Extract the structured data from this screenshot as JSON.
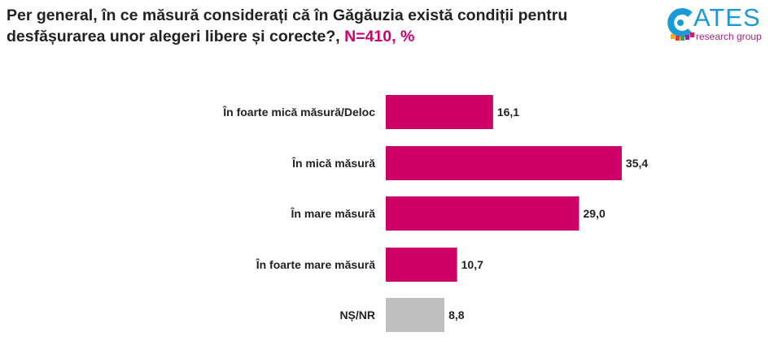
{
  "header": {
    "title": "Per general, în ce măsură considerați că în Găgăuzia există condiții pentru desfășurarea unor alegeri libere și corecte?,",
    "n_label": "N=410, %"
  },
  "logo": {
    "name": "ATES",
    "subtitle": "research group"
  },
  "chart_data": {
    "type": "bar",
    "orientation": "horizontal",
    "title": "Per general, în ce măsură considerați că în Găgăuzia există condiții pentru desfășurarea unor alegeri libere și corecte?, N=410, %",
    "categories": [
      "În foarte mică măsură/Deloc",
      "În mică măsură",
      "În mare măsură",
      "În foarte mare măsură",
      "NȘ/NR"
    ],
    "values": [
      16.1,
      35.4,
      29.0,
      10.7,
      8.8
    ],
    "labels": [
      "16,1",
      "35,4",
      "29,0",
      "10,7",
      "8,8"
    ],
    "colors": [
      "#cc0066",
      "#cc0066",
      "#cc0066",
      "#cc0066",
      "#bfbfbf"
    ],
    "xlim": [
      0,
      40
    ],
    "grid": false
  }
}
